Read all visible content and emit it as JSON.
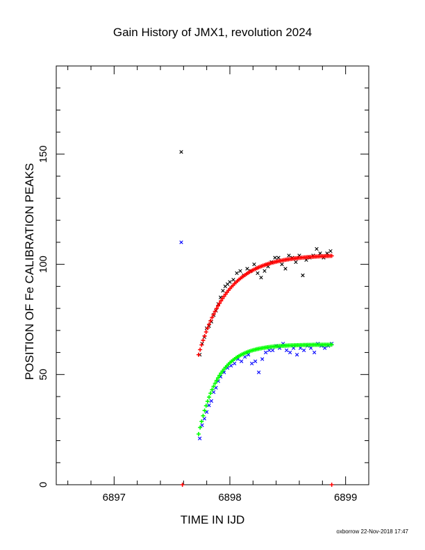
{
  "chart_data": {
    "type": "scatter",
    "title": "Gain History of JMX1, revolution 2024",
    "xlabel": "TIME IN IJD",
    "ylabel": "POSITION OF Fe CALIBRATION PEAKS",
    "xlim": [
      6896.5,
      6899.2
    ],
    "ylim": [
      0,
      190
    ],
    "x_ticks": [
      "6897",
      "6898",
      "6899"
    ],
    "y_ticks": [
      "0",
      "50",
      "100",
      "150"
    ],
    "grid": false,
    "legend": "none",
    "colors": {
      "black": "#000000",
      "red": "#ff0000",
      "blue": "#0000ff",
      "green": "#00ff00"
    },
    "series": [
      {
        "marker": "x",
        "color": "black",
        "x": [
          6897.58,
          6897.74,
          6897.76,
          6897.78,
          6897.8,
          6897.82,
          6897.84,
          6897.86,
          6897.88,
          6897.9,
          6897.92,
          6897.94,
          6897.96,
          6897.98,
          6898.0,
          6898.03,
          6898.06,
          6898.09,
          6898.12,
          6898.15,
          6898.18,
          6898.21,
          6898.24,
          6898.27,
          6898.3,
          6898.33,
          6898.36,
          6898.39,
          6898.42,
          6898.45,
          6898.48,
          6898.51,
          6898.54,
          6898.57,
          6898.6,
          6898.63,
          6898.66,
          6898.69,
          6898.72,
          6898.75,
          6898.78,
          6898.81,
          6898.84,
          6898.87
        ],
        "y": [
          151,
          59,
          64,
          67,
          71,
          72,
          74,
          77,
          79,
          82,
          85,
          88,
          90,
          91,
          92,
          93,
          96,
          97,
          95,
          98,
          97,
          100,
          96,
          94,
          97,
          99,
          101,
          103,
          103,
          100,
          98,
          104,
          103,
          101,
          104,
          95,
          102,
          103,
          104,
          107,
          105,
          103,
          105,
          106
        ]
      },
      {
        "marker": "x",
        "color": "blue",
        "x": [
          6897.58,
          6897.74,
          6897.76,
          6897.78,
          6897.8,
          6897.82,
          6897.84,
          6897.86,
          6897.88,
          6897.9,
          6897.92,
          6897.95,
          6897.98,
          6898.01,
          6898.04,
          6898.07,
          6898.1,
          6898.13,
          6898.16,
          6898.19,
          6898.22,
          6898.25,
          6898.28,
          6898.31,
          6898.34,
          6898.37,
          6898.4,
          6898.43,
          6898.46,
          6898.49,
          6898.52,
          6898.55,
          6898.58,
          6898.61,
          6898.64,
          6898.67,
          6898.7,
          6898.73,
          6898.76,
          6898.79,
          6898.82,
          6898.85,
          6898.88
        ],
        "y": [
          110,
          21,
          27,
          30,
          33,
          36,
          38,
          42,
          44,
          47,
          49,
          51,
          53,
          54,
          55,
          57,
          56,
          58,
          59,
          55,
          56,
          51,
          57,
          60,
          61,
          61,
          63,
          62,
          64,
          61,
          60,
          62,
          59,
          62,
          61,
          63,
          62,
          60,
          64,
          63,
          62,
          63,
          64
        ]
      },
      {
        "name_hidden": "",
        "marker": "+",
        "color": "red",
        "curve": {
          "a": 104.3,
          "b": 45.3,
          "tau": 0.25,
          "x0": 6897.73,
          "x_end": 6898.88,
          "n": 90
        },
        "extra_points": [
          [
            6897.59,
            0
          ],
          [
            6898.88,
            0
          ]
        ]
      },
      {
        "marker": "+",
        "color": "green",
        "curve": {
          "a": 63.6,
          "b": 40.6,
          "tau": 0.17,
          "x0": 6897.73,
          "x_end": 6898.88,
          "n": 90
        }
      }
    ],
    "credit": "oxborrow 22-Nov-2018 17:47"
  }
}
